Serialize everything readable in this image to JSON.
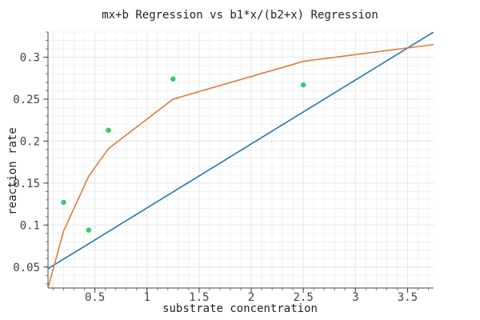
{
  "chart_data": {
    "type": "scatter",
    "title": "mx+b Regression vs b1*x/(b2+x) Regression",
    "xlabel": "substrate concentration",
    "ylabel": "reaction rate",
    "xlim": [
      0.05,
      3.75
    ],
    "ylim": [
      0.025,
      0.33
    ],
    "x_ticks": [
      0.5,
      1,
      1.5,
      2,
      2.5,
      3,
      3.5
    ],
    "x_tick_labels": [
      "0.5",
      "1",
      "1.5",
      "2",
      "2.5",
      "3",
      "3.5"
    ],
    "y_ticks": [
      0.05,
      0.1,
      0.15,
      0.2,
      0.25,
      0.3
    ],
    "y_tick_labels": [
      "0.05",
      "0.1",
      "0.15",
      "0.2",
      "0.25",
      "0.3"
    ],
    "grid": true,
    "legend": "none",
    "points": {
      "x": [
        0.2,
        0.44,
        0.63,
        1.25,
        2.5
      ],
      "y": [
        0.127,
        0.094,
        0.213,
        0.274,
        0.267
      ],
      "color": "#2ecc71"
    },
    "series": [
      {
        "type": "line",
        "color": "#1f77b4",
        "x": [
          0.05,
          3.75
        ],
        "y": [
          0.048,
          0.33
        ]
      },
      {
        "type": "line",
        "color": "#e07b39",
        "x": [
          0.05,
          0.2,
          0.44,
          0.63,
          1.25,
          2.5,
          3.75
        ],
        "y": [
          0.025,
          0.093,
          0.158,
          0.191,
          0.25,
          0.295,
          0.315
        ]
      }
    ]
  }
}
